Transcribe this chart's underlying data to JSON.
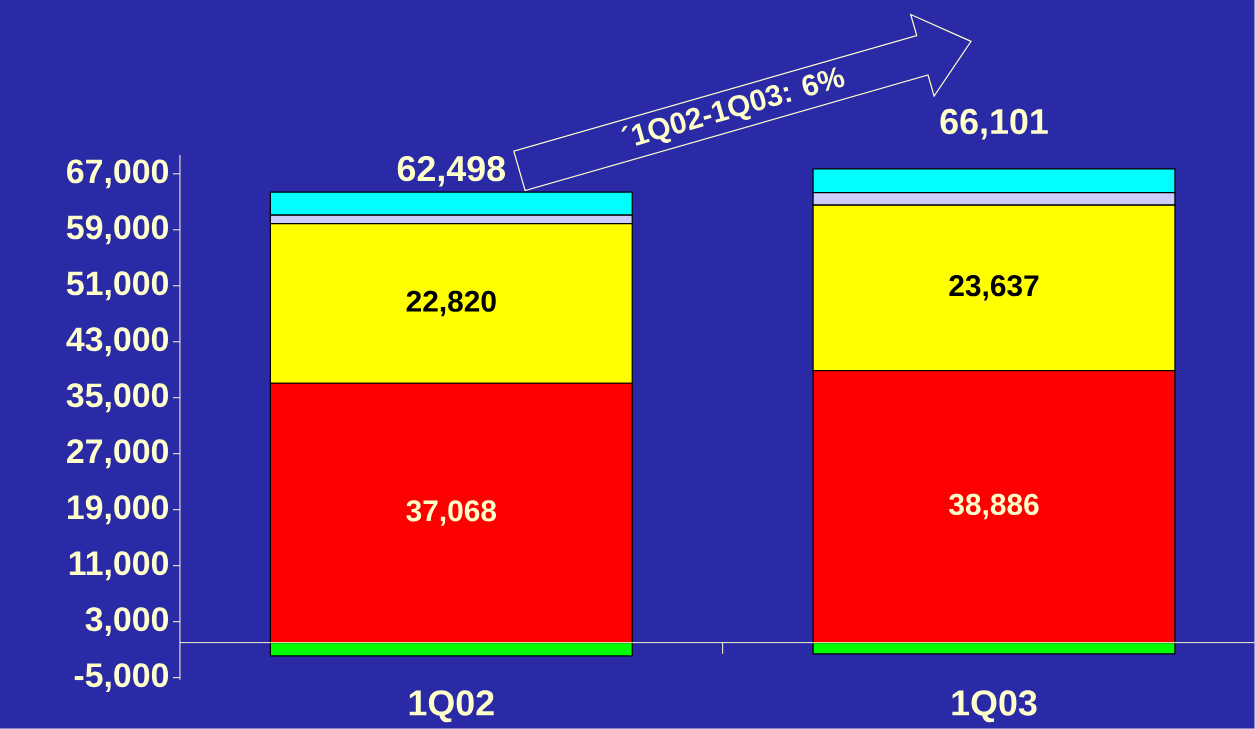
{
  "chart_data": {
    "type": "bar",
    "stacked": true,
    "categories": [
      "1Q02",
      "1Q03"
    ],
    "series": [
      {
        "color": "#00ff00",
        "values": [
          -1900,
          -1600
        ]
      },
      {
        "color": "#ff0000",
        "values": [
          37068,
          38886
        ],
        "value_labels": [
          "37,068",
          "38,886"
        ]
      },
      {
        "color": "#ffff00",
        "values": [
          22820,
          23637
        ],
        "value_labels": [
          "22,820",
          "23,637"
        ]
      },
      {
        "color": "#ccccff",
        "values": [
          1200,
          1800
        ]
      },
      {
        "color": "#00ffff",
        "values": [
          3310,
          3378
        ]
      }
    ],
    "totals": [
      "62,498",
      "66,101"
    ],
    "ylim": [
      -5300,
      69700
    ],
    "yticks": [
      {
        "value": -5000,
        "label": "-5,000"
      },
      {
        "value": 3000,
        "label": "3,000"
      },
      {
        "value": 11000,
        "label": "11,000"
      },
      {
        "value": 19000,
        "label": "19,000"
      },
      {
        "value": 27000,
        "label": "27,000"
      },
      {
        "value": 35000,
        "label": "35,000"
      },
      {
        "value": 43000,
        "label": "43,000"
      },
      {
        "value": 51000,
        "label": "51,000"
      },
      {
        "value": 59000,
        "label": "59,000"
      },
      {
        "value": 67000,
        "label": "67,000"
      }
    ],
    "annotations": [
      "´1Q02-1Q03: 6%"
    ],
    "grid": false
  }
}
